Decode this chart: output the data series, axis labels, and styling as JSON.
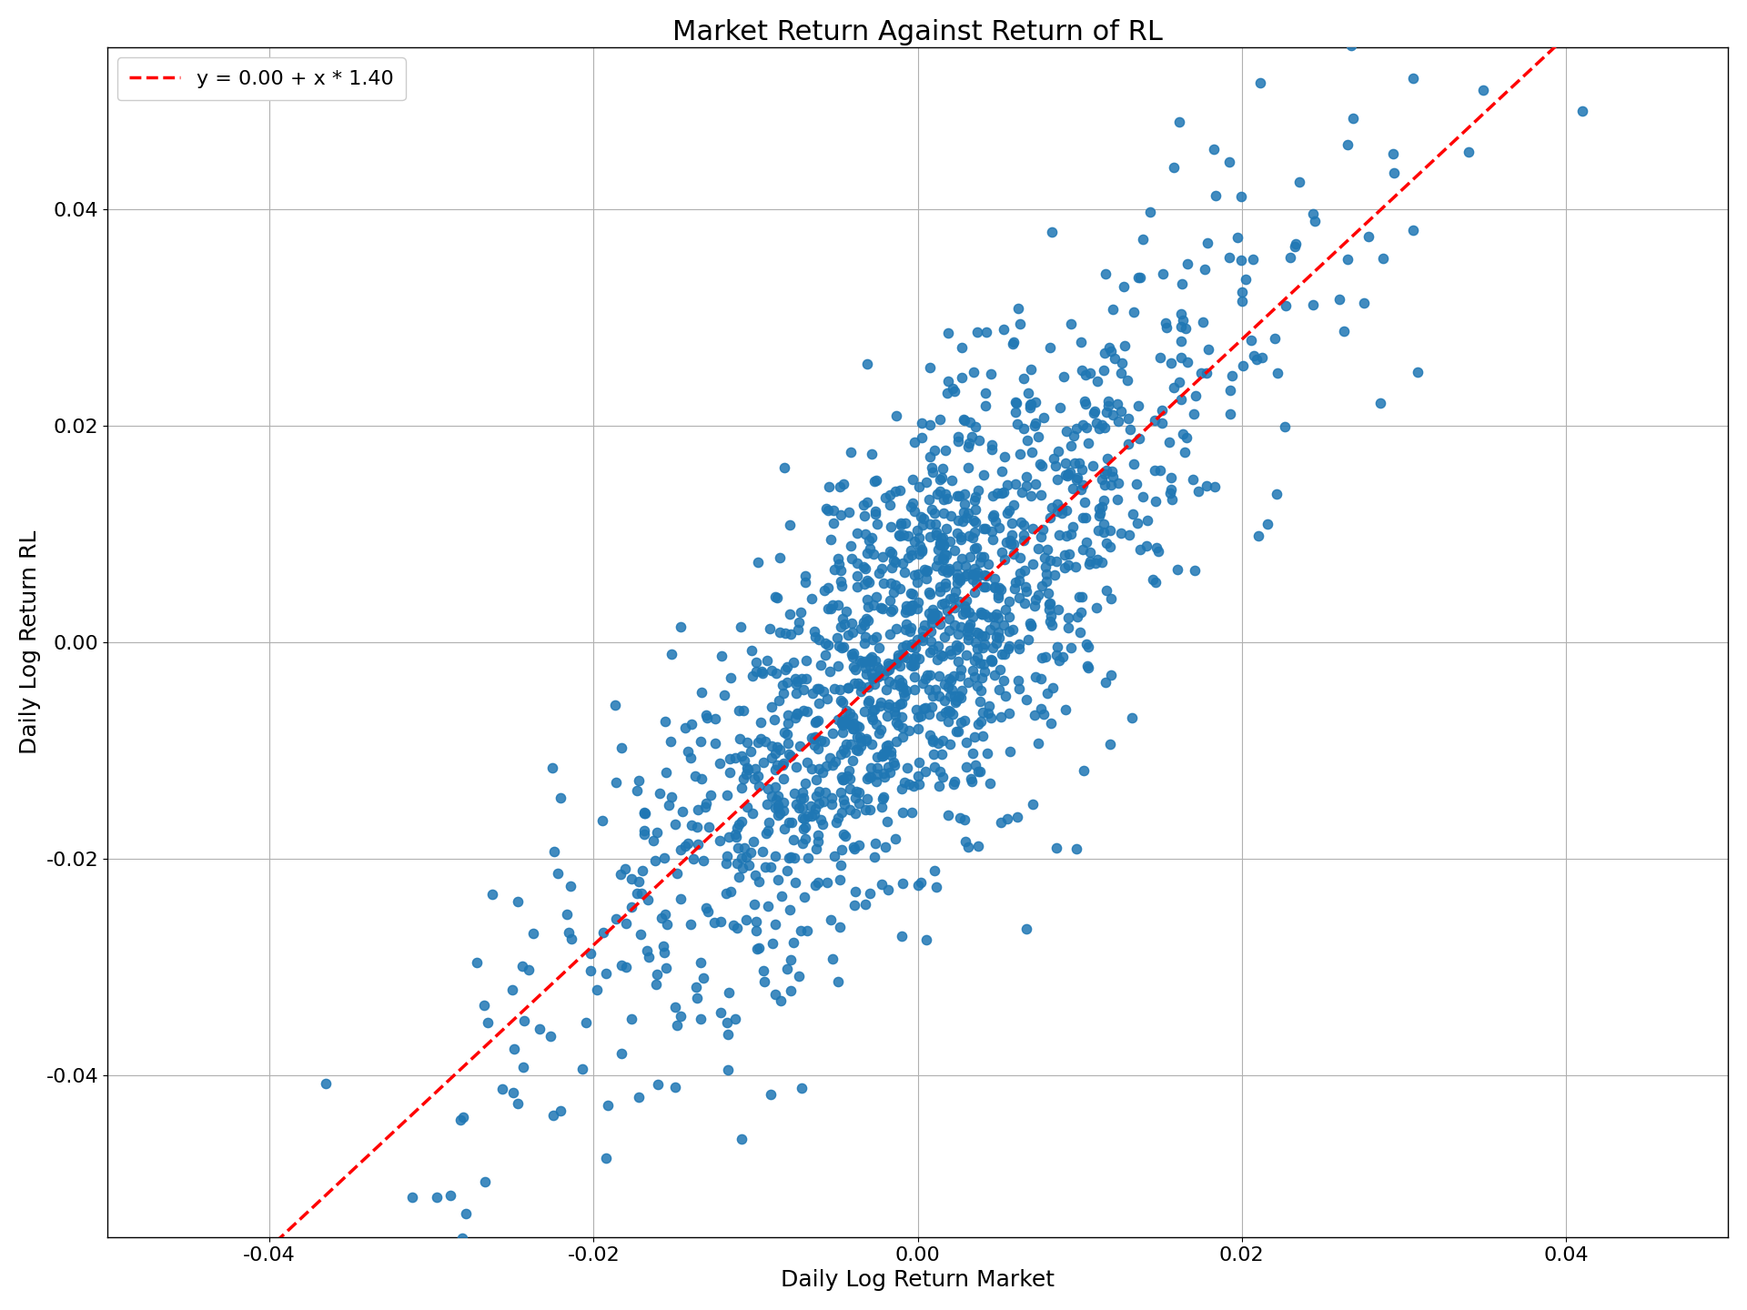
{
  "title": "Market Return Against Return of RL",
  "xlabel": "Daily Log Return Market",
  "ylabel": "Daily Log Return RL",
  "legend_label": "y = 0.00 + x * 1.40",
  "intercept": 0.0,
  "slope": 1.4,
  "xlim": [
    -0.05,
    0.05
  ],
  "ylim": [
    -0.055,
    0.055
  ],
  "xticks": [
    -0.04,
    -0.02,
    0.0,
    0.02,
    0.04
  ],
  "yticks": [
    -0.04,
    -0.02,
    0.0,
    0.02,
    0.04
  ],
  "scatter_color": "#1f77b4",
  "line_color": "#ff0000",
  "background_color": "#ffffff",
  "grid_color": "#b0b0b0",
  "n_points": 1500,
  "seed": 42,
  "market_std": 0.008,
  "noise_std": 0.01,
  "title_fontsize": 22,
  "label_fontsize": 18,
  "tick_fontsize": 16,
  "legend_fontsize": 16,
  "marker_size": 55,
  "line_width": 2.5,
  "fig_width": 19.2,
  "fig_height": 14.4,
  "dpi": 100
}
